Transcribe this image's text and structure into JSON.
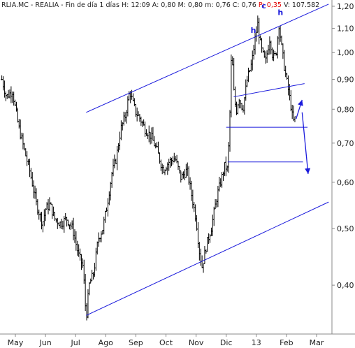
{
  "header": {
    "symbol": "RLIA.MC",
    "name": "REALIA",
    "period": "Fin de día 1 días",
    "high": "H: 12:09",
    "ask": "A: 0,80",
    "mid": "M: 0,80",
    "min": "m: 0,76",
    "close": "C: 0,76",
    "p": "P: 0,35",
    "volume": "V: 107.582"
  },
  "chart_data": {
    "type": "bar",
    "style": "ohlc-price-bars",
    "log_scale": true,
    "ylim": [
      0.33,
      1.23
    ],
    "y_ticks": [
      {
        "value": 1.2,
        "label": "1,20"
      },
      {
        "value": 1.1,
        "label": "1,10"
      },
      {
        "value": 1.0,
        "label": "1,00"
      },
      {
        "value": 0.9,
        "label": "0,90"
      },
      {
        "value": 0.8,
        "label": "0,80"
      },
      {
        "value": 0.7,
        "label": "0,70"
      },
      {
        "value": 0.6,
        "label": "0,60"
      },
      {
        "value": 0.5,
        "label": "0,50"
      },
      {
        "value": 0.4,
        "label": "0,40"
      }
    ],
    "x_ticks": [
      "May",
      "Jun",
      "Jul",
      "Ago",
      "Sep",
      "Oct",
      "Nov",
      "Dic",
      "13",
      "Feb",
      "Mar"
    ],
    "x_range": [
      0,
      10
    ],
    "price_path": [
      [
        -0.45,
        0.9
      ],
      [
        -0.3,
        0.84
      ],
      [
        -0.1,
        0.86
      ],
      [
        0.1,
        0.75
      ],
      [
        0.3,
        0.68
      ],
      [
        0.5,
        0.62
      ],
      [
        0.7,
        0.55
      ],
      [
        0.9,
        0.51
      ],
      [
        1.0,
        0.54
      ],
      [
        1.15,
        0.55
      ],
      [
        1.3,
        0.52
      ],
      [
        1.5,
        0.51
      ],
      [
        1.7,
        0.52
      ],
      [
        1.9,
        0.5
      ],
      [
        2.1,
        0.45
      ],
      [
        2.25,
        0.43
      ],
      [
        2.35,
        0.35
      ],
      [
        2.45,
        0.4
      ],
      [
        2.6,
        0.42
      ],
      [
        2.75,
        0.48
      ],
      [
        2.9,
        0.5
      ],
      [
        3.05,
        0.55
      ],
      [
        3.2,
        0.62
      ],
      [
        3.35,
        0.66
      ],
      [
        3.5,
        0.74
      ],
      [
        3.65,
        0.78
      ],
      [
        3.8,
        0.86
      ],
      [
        3.9,
        0.82
      ],
      [
        4.0,
        0.79
      ],
      [
        4.15,
        0.77
      ],
      [
        4.3,
        0.74
      ],
      [
        4.5,
        0.72
      ],
      [
        4.7,
        0.68
      ],
      [
        4.9,
        0.63
      ],
      [
        5.1,
        0.65
      ],
      [
        5.3,
        0.66
      ],
      [
        5.5,
        0.61
      ],
      [
        5.7,
        0.63
      ],
      [
        5.85,
        0.57
      ],
      [
        6.0,
        0.52
      ],
      [
        6.1,
        0.46
      ],
      [
        6.2,
        0.43
      ],
      [
        6.35,
        0.47
      ],
      [
        6.5,
        0.5
      ],
      [
        6.7,
        0.57
      ],
      [
        6.85,
        0.61
      ],
      [
        6.95,
        0.64
      ],
      [
        7.05,
        0.63
      ],
      [
        7.12,
        0.78
      ],
      [
        7.18,
        1.02
      ],
      [
        7.25,
        0.86
      ],
      [
        7.33,
        0.79
      ],
      [
        7.42,
        0.84
      ],
      [
        7.55,
        0.8
      ],
      [
        7.7,
        0.9
      ],
      [
        7.85,
        0.96
      ],
      [
        7.95,
        1.05
      ],
      [
        8.05,
        1.12
      ],
      [
        8.15,
        1.02
      ],
      [
        8.3,
        0.96
      ],
      [
        8.45,
        1.06
      ],
      [
        8.55,
        0.98
      ],
      [
        8.65,
        0.99
      ],
      [
        8.75,
        1.12
      ],
      [
        8.85,
        1.01
      ],
      [
        8.95,
        0.93
      ],
      [
        9.05,
        0.87
      ],
      [
        9.15,
        0.81
      ],
      [
        9.22,
        0.76
      ],
      [
        9.28,
        0.77
      ]
    ],
    "lines": [
      {
        "name": "upper-channel",
        "points": [
          [
            2.35,
            0.79
          ],
          [
            10.4,
            1.21
          ]
        ]
      },
      {
        "name": "lower-channel",
        "points": [
          [
            2.35,
            0.355
          ],
          [
            10.4,
            0.555
          ]
        ]
      },
      {
        "name": "neckline-upper",
        "points": [
          [
            7.25,
            0.84
          ],
          [
            9.6,
            0.885
          ]
        ]
      },
      {
        "name": "support-horizontal",
        "points": [
          [
            7.0,
            0.745
          ],
          [
            9.7,
            0.745
          ]
        ]
      },
      {
        "name": "resistance-horizontal",
        "points": [
          [
            7.05,
            0.65
          ],
          [
            9.55,
            0.65
          ]
        ]
      }
    ],
    "arrows": [
      {
        "name": "arrow-up",
        "from": [
          9.32,
          0.77
        ],
        "to": [
          9.52,
          0.83
        ]
      },
      {
        "name": "arrow-down",
        "from": [
          9.52,
          0.79
        ],
        "to": [
          9.72,
          0.62
        ]
      }
    ],
    "annotations": [
      {
        "text": "h",
        "x": 7.9,
        "y": 1.08
      },
      {
        "text": "c",
        "x": 8.25,
        "y": 1.19
      },
      {
        "text": "h",
        "x": 8.8,
        "y": 1.16
      }
    ]
  }
}
